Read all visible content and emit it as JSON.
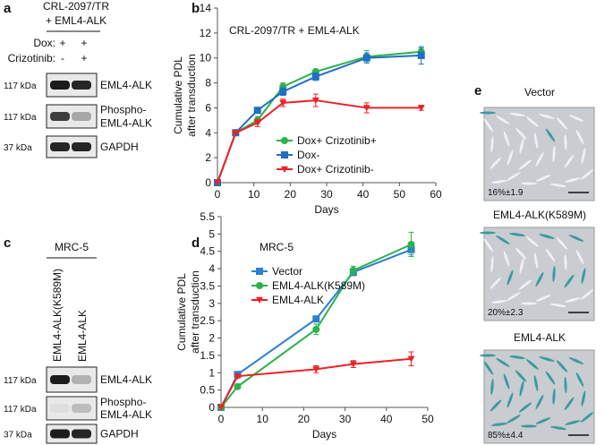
{
  "panel_labels": [
    "a",
    "b",
    "c",
    "d",
    "e"
  ],
  "panel_a": {
    "title_lines": [
      "CRL-2097/TR",
      "+ EML4-ALK"
    ],
    "conditions": [
      {
        "label": "Dox:",
        "marks": [
          "+",
          "+"
        ]
      },
      {
        "label": "Crizotinib:",
        "marks": [
          "-",
          "+"
        ]
      }
    ],
    "blots": [
      {
        "kda": "117 kDa",
        "label": [
          "EML4-ALK"
        ]
      },
      {
        "kda": "117 kDa",
        "label": [
          "Phospho-",
          "EML4-ALK"
        ]
      },
      {
        "kda": "37 kDa",
        "label": [
          "GAPDH"
        ]
      }
    ]
  },
  "panel_c": {
    "title": "MRC-5",
    "lanes": [
      "EML4-ALK(K589M)",
      "EML4-ALK"
    ],
    "blots": [
      {
        "kda": "117 kDa",
        "label": [
          "EML4-ALK"
        ]
      },
      {
        "kda": "117 kDa",
        "label": [
          "Phospho-",
          "EML4-ALK"
        ]
      },
      {
        "kda": "37 kDa",
        "label": [
          "GAPDH"
        ]
      }
    ]
  },
  "panel_e": {
    "images": [
      {
        "title": "Vector",
        "percent": "16%±1.9"
      },
      {
        "title": "EML4-ALK(K589M)",
        "percent": "20%±2.3"
      },
      {
        "title": "EML4-ALK",
        "percent": "85%±4.4"
      }
    ]
  },
  "chart_data": [
    {
      "type": "line",
      "annotation": "CRL-2097/TR + EML4-ALK",
      "xlabel": "Days",
      "ylabel": [
        "Cumulative PDL",
        "after transduction"
      ],
      "x": [
        0,
        5,
        11,
        18,
        27,
        41,
        56
      ],
      "xlim": [
        0,
        60
      ],
      "ylim": [
        0,
        14
      ],
      "xticks": [
        0,
        10,
        20,
        30,
        40,
        50,
        60
      ],
      "yticks": [
        0,
        2,
        4,
        6,
        8,
        10,
        12,
        14
      ],
      "series": [
        {
          "name": "Dox+ Crizotinib+",
          "color": "#2bb24c",
          "marker": "circle",
          "values": [
            0,
            4.0,
            5.0,
            7.7,
            8.9,
            10.1,
            10.5
          ],
          "errors": [
            0,
            0.1,
            0.3,
            0.3,
            0.2,
            0.5,
            0.3
          ]
        },
        {
          "name": "Dox-",
          "color": "#1f6fc5",
          "marker": "square",
          "values": [
            0,
            4.0,
            5.8,
            7.3,
            8.5,
            10.0,
            10.2
          ],
          "errors": [
            0,
            0.1,
            0.2,
            0.3,
            0.3,
            0.4,
            0.7
          ]
        },
        {
          "name": "Dox+ Crizotinib-",
          "color": "#ec2227",
          "marker": "triangle",
          "values": [
            0,
            4.0,
            4.8,
            6.4,
            6.6,
            6.0,
            6.0
          ],
          "errors": [
            0,
            0.1,
            0.3,
            0.3,
            0.5,
            0.4,
            0.2
          ]
        }
      ]
    },
    {
      "type": "line",
      "annotation": "MRC-5",
      "xlabel": "Days",
      "ylabel": [
        "Cumulative PDL",
        "after transduction"
      ],
      "x": [
        0,
        4,
        23,
        32,
        46
      ],
      "xlim": [
        0,
        50
      ],
      "ylim": [
        0,
        5.5
      ],
      "xticks": [
        0,
        10,
        20,
        30,
        40,
        50
      ],
      "yticks": [
        0,
        0.5,
        1,
        1.5,
        2,
        2.5,
        3,
        3.5,
        4,
        4.5,
        5,
        5.5
      ],
      "series": [
        {
          "name": "Vector",
          "color": "#2a7fd0",
          "marker": "square",
          "values": [
            0,
            0.95,
            2.55,
            3.9,
            4.55
          ],
          "errors": [
            0,
            0.05,
            0.08,
            0.1,
            0.15
          ]
        },
        {
          "name": "EML4-ALK(K589M)",
          "color": "#2bb24c",
          "marker": "circle",
          "values": [
            0,
            0.6,
            2.25,
            3.95,
            4.7
          ],
          "errors": [
            0,
            0.05,
            0.15,
            0.12,
            0.35
          ]
        },
        {
          "name": "EML4-ALK",
          "color": "#ec2227",
          "marker": "triangle",
          "values": [
            0,
            0.9,
            1.1,
            1.25,
            1.4
          ],
          "errors": [
            0,
            0.05,
            0.1,
            0.1,
            0.2
          ]
        }
      ]
    }
  ]
}
